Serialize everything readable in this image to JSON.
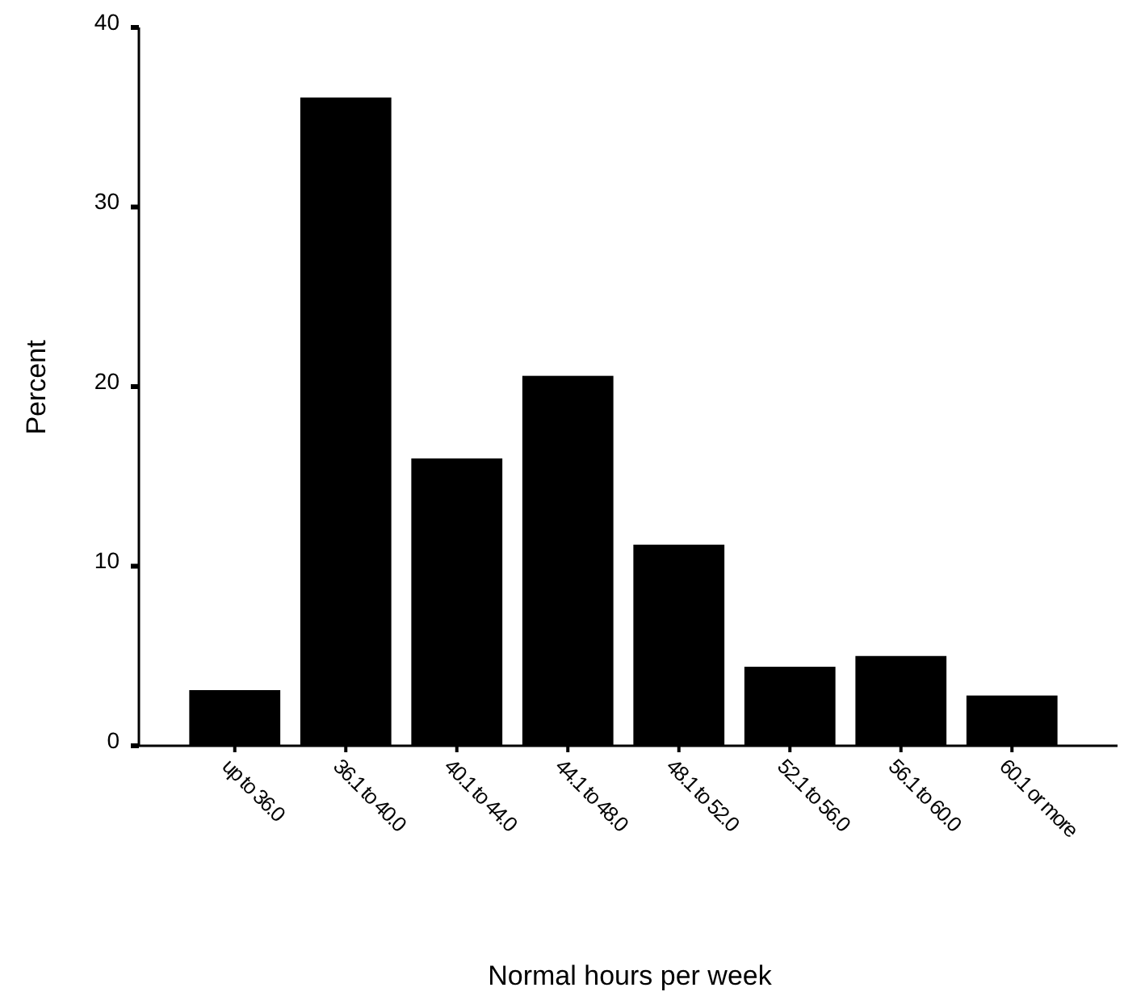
{
  "chart_data": {
    "type": "bar",
    "xlabel": "Normal hours per week",
    "ylabel": "Percent",
    "categories": [
      "up to 36.0",
      "36.1 to 40.0",
      "40.1 to 44.0",
      "44.1 to 48.0",
      "48.1 to 52.0",
      "52.1 to 56.0",
      "56.1 to 60.0",
      "60.1 or more"
    ],
    "values": [
      3.1,
      36.1,
      16.0,
      20.6,
      11.2,
      4.4,
      5.0,
      2.8
    ],
    "color": "#000000",
    "ylim": [
      0,
      40
    ],
    "yticks": [
      0,
      10,
      20,
      30,
      40
    ],
    "grid": false
  }
}
